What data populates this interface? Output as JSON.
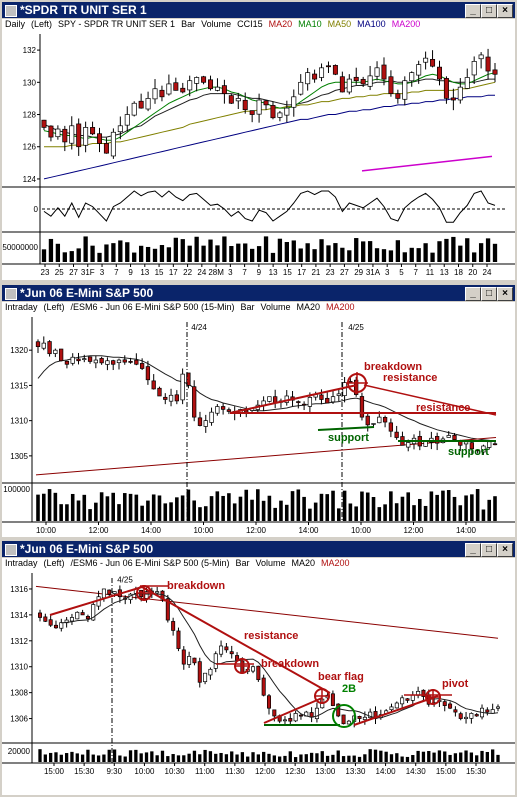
{
  "colors": {
    "title_bg": "#0a246a",
    "candle_up": "#ffffff",
    "candle_down": "#b01010",
    "annot": "#b01010",
    "support": "#006400",
    "ma20": "#202020",
    "ma10": "#008000",
    "ma50": "#808000",
    "ma100": "#000080",
    "ma200": "#8b0000",
    "ma200_alt": "#cc00cc"
  },
  "window_buttons": {
    "minimize": "_",
    "maximize": "□",
    "close": "×"
  },
  "panels": [
    {
      "title": "*SPDR TR UNIT SER 1",
      "header": {
        "period": "Daily",
        "axis": "(Left)",
        "symbol": "SPY - SPDR TR UNIT SER 1",
        "type": "Bar",
        "volume": "Volume",
        "ind": "CCI15",
        "ma1": "MA20",
        "ma2": "MA10",
        "ma3": "MA50",
        "ma4": "MA100",
        "ma5": "MA200"
      }
    },
    {
      "title": "*Jun 06  E-Mini S&P 500",
      "header": {
        "period": "Intraday",
        "axis": "(Left)",
        "symbol": "/ESM6 - Jun 06 E-Mini S&P 500 (15-Min)",
        "type": "Bar",
        "volume": "Volume",
        "ma1": "MA20",
        "ma2": "MA200"
      }
    },
    {
      "title": "*Jun 06  E-Mini S&P 500",
      "header": {
        "period": "Intraday",
        "axis": "(Left)",
        "symbol": "/ESM6 - Jun 06 E-Mini S&P 500 (5-Min)",
        "type": "Bar",
        "volume": "Volume",
        "ma1": "MA20",
        "ma2": "MA200"
      }
    }
  ],
  "chart_data": [
    {
      "type": "candlestick",
      "yticks": [
        124,
        126,
        128,
        130,
        132
      ],
      "ylim": [
        123.5,
        133
      ],
      "xticks": [
        "23",
        "25",
        "27",
        "31F",
        "3",
        "7",
        "9",
        "13",
        "15",
        "17",
        "22",
        "24",
        "28M",
        "3",
        "7",
        "9",
        "13",
        "15",
        "17",
        "21",
        "23",
        "27",
        "29",
        "31A",
        "3",
        "5",
        "7",
        "11",
        "13",
        "18",
        "20",
        "24"
      ],
      "close": [
        127.2,
        126.6,
        127.1,
        126.3,
        127.3,
        126.0,
        127.2,
        126.8,
        126.2,
        125.6,
        126.9,
        127.3,
        128.0,
        128.7,
        128.4,
        129.0,
        129.6,
        129.1,
        129.9,
        129.5,
        129.4,
        130.1,
        130.3,
        130.0,
        129.6,
        129.7,
        129.3,
        128.7,
        129.0,
        128.3,
        128.0,
        128.9,
        128.6,
        127.8,
        128.1,
        128.4,
        129.1,
        130.0,
        130.6,
        130.2,
        130.9,
        131.0,
        130.5,
        129.4,
        130.2,
        130.1,
        129.9,
        130.4,
        130.9,
        130.2,
        129.3,
        129.0,
        130.1,
        130.6,
        131.1,
        131.5,
        131.0,
        130.2,
        129.0,
        128.9,
        129.7,
        130.3,
        131.3,
        131.7,
        130.7,
        130.5
      ],
      "ma20": [
        127.4,
        127.2,
        127.0,
        126.9,
        126.8,
        126.7,
        126.7,
        126.6,
        126.6,
        126.6,
        126.7,
        126.8,
        127.0,
        127.2,
        127.3,
        127.6,
        127.9,
        128.1,
        128.3,
        128.5,
        128.7,
        128.9,
        129.0,
        129.2,
        129.3,
        129.3,
        129.3,
        129.3,
        129.2,
        129.1,
        129.0,
        129.0,
        128.9,
        128.8,
        128.7,
        128.6,
        128.6,
        128.7,
        128.8,
        129.0,
        129.2,
        129.3,
        129.5,
        129.6,
        129.7,
        129.8,
        129.8,
        129.9,
        130.0,
        130.0,
        130.1,
        130.0,
        130.0,
        130.0,
        130.1,
        130.2,
        130.2,
        130.1,
        130.1,
        130.0,
        130.0,
        130.0,
        130.0,
        130.1,
        130.2,
        130.2
      ],
      "ma10": [
        127.0,
        126.9,
        126.8,
        126.7,
        126.7,
        126.6,
        126.5,
        126.6,
        126.5,
        126.4,
        126.4,
        126.6,
        126.9,
        127.2,
        127.5,
        127.8,
        128.1,
        128.4,
        128.7,
        128.9,
        129.1,
        129.3,
        129.5,
        129.6,
        129.7,
        129.7,
        129.6,
        129.4,
        129.3,
        129.1,
        128.9,
        128.8,
        128.7,
        128.5,
        128.4,
        128.4,
        128.5,
        128.8,
        129.1,
        129.4,
        129.7,
        129.9,
        130.0,
        130.0,
        130.0,
        130.0,
        130.0,
        130.1,
        130.2,
        130.1,
        130.0,
        129.9,
        129.9,
        130.0,
        130.2,
        130.4,
        130.5,
        130.4,
        130.2,
        130.0,
        129.9,
        129.9,
        130.1,
        130.3,
        130.5,
        130.6
      ],
      "ma50": [
        126.0,
        126.0,
        126.0,
        126.0,
        126.1,
        126.1,
        126.1,
        126.2,
        126.2,
        126.2,
        126.3,
        126.3,
        126.4,
        126.5,
        126.6,
        126.7,
        126.8,
        126.9,
        127.0,
        127.1,
        127.2,
        127.4,
        127.5,
        127.6,
        127.7,
        127.8,
        127.9,
        128.0,
        128.1,
        128.2,
        128.2,
        128.3,
        128.3,
        128.4,
        128.4,
        128.5,
        128.5,
        128.6,
        128.6,
        128.7,
        128.8,
        128.8,
        128.9,
        129.0,
        129.0,
        129.1,
        129.1,
        129.2,
        129.2,
        129.3,
        129.3,
        129.3,
        129.3,
        129.4,
        129.4,
        129.5,
        129.5,
        129.5,
        129.5,
        129.5,
        129.6,
        129.6,
        129.7,
        129.8,
        129.9,
        130.0
      ],
      "ma100": [
        124.0,
        124.1,
        124.2,
        124.3,
        124.4,
        124.5,
        124.6,
        124.7,
        124.8,
        124.9,
        125.0,
        125.1,
        125.2,
        125.3,
        125.4,
        125.5,
        125.6,
        125.7,
        125.8,
        125.9,
        126.0,
        126.1,
        126.2,
        126.3,
        126.4,
        126.5,
        126.6,
        126.7,
        126.8,
        126.9,
        127.0,
        127.1,
        127.2,
        127.3,
        127.4,
        127.5,
        127.6,
        127.7,
        127.7,
        127.8,
        127.9,
        128.0,
        128.0,
        128.1,
        128.2,
        128.2,
        128.3,
        128.3,
        128.4,
        128.5,
        128.5,
        128.6,
        128.6,
        128.7,
        128.7,
        128.8,
        128.8,
        128.9,
        128.9,
        129.0,
        129.0,
        129.1,
        129.1,
        129.1,
        129.2,
        129.2
      ],
      "ma200_segment": {
        "from": 124.5,
        "to": 125.4
      },
      "cci_zero": 0,
      "volume_label": "50000000"
    },
    {
      "type": "candlestick",
      "yticks": [
        1305,
        1310,
        1315,
        1320
      ],
      "ylim": [
        1302,
        1324
      ],
      "xticks": [
        "10:00",
        "12:00",
        "14:00",
        "10:00",
        "12:00",
        "14:00",
        "10:00",
        "12:00",
        "14:00"
      ],
      "close": [
        1320.5,
        1321.0,
        1319.5,
        1320.0,
        1318.5,
        1318.0,
        1319.0,
        1318.5,
        1318.8,
        1318.4,
        1318.6,
        1318.2,
        1318.5,
        1318.0,
        1318.6,
        1318.3,
        1318.4,
        1318.0,
        1317.4,
        1315.8,
        1314.5,
        1313.5,
        1313.0,
        1313.6,
        1312.8,
        1316.6,
        1315.0,
        1310.5,
        1309.3,
        1310.0,
        1311.2,
        1312.0,
        1311.6,
        1311.3,
        1311.0,
        1311.6,
        1311.2,
        1311.8,
        1312.2,
        1312.8,
        1313.4,
        1312.5,
        1312.8,
        1313.5,
        1312.9,
        1312.6,
        1312.3,
        1313.3,
        1313.7,
        1313.0,
        1312.5,
        1313.4,
        1313.8,
        1315.4,
        1315.5,
        1313.7,
        1310.5,
        1309.4,
        1309.6,
        1310.5,
        1309.8,
        1308.5,
        1307.6,
        1306.5,
        1306.9,
        1307.5,
        1306.4,
        1307.1,
        1307.5,
        1306.8,
        1307.4,
        1307.9,
        1307.3,
        1306.5,
        1307.0,
        1306.0,
        1305.8,
        1306.4,
        1307.0,
        1306.6
      ],
      "ma20": [
        1316.0,
        1317.0,
        1317.8,
        1318.3,
        1318.5,
        1318.6,
        1318.8,
        1319.0,
        1319.1,
        1319.2,
        1319.2,
        1319.2,
        1319.1,
        1319.0,
        1319.0,
        1318.9,
        1318.8,
        1318.7,
        1318.5,
        1318.1,
        1317.6,
        1317.1,
        1316.6,
        1316.2,
        1315.7,
        1315.5,
        1315.2,
        1314.6,
        1313.9,
        1313.4,
        1313.0,
        1312.8,
        1312.5,
        1312.3,
        1312.1,
        1311.9,
        1311.7,
        1311.5,
        1311.4,
        1311.4,
        1311.5,
        1311.6,
        1311.7,
        1311.8,
        1312.0,
        1312.1,
        1312.2,
        1312.3,
        1312.4,
        1312.4,
        1312.5,
        1312.6,
        1312.7,
        1312.9,
        1313.1,
        1313.2,
        1313.0,
        1312.7,
        1312.4,
        1312.2,
        1311.9,
        1311.5,
        1311.1,
        1310.7,
        1310.3,
        1310.0,
        1309.6,
        1309.3,
        1309.0,
        1308.7,
        1308.5,
        1308.3,
        1308.1,
        1307.9,
        1307.7,
        1307.5,
        1307.4,
        1307.3,
        1307.2,
        1307.1
      ],
      "ma200": {
        "from": 1302.3,
        "to": 1307.6
      },
      "date_markers": [
        "4/24",
        "4/25"
      ],
      "annotations": [
        "breakdown",
        "resistance",
        "resistance",
        "support",
        "support"
      ],
      "volume_label": "100000"
    },
    {
      "type": "candlestick",
      "yticks": [
        1306,
        1308,
        1310,
        1312,
        1314,
        1316
      ],
      "ylim": [
        1304.5,
        1317
      ],
      "xticks": [
        "15:00",
        "15:30",
        "9:30",
        "10:00",
        "10:30",
        "11:00",
        "11:30",
        "12:00",
        "12:30",
        "13:00",
        "13:30",
        "14:00",
        "14:30",
        "15:00",
        "15:30"
      ],
      "close": [
        1313.8,
        1313.5,
        1313.2,
        1313.0,
        1313.4,
        1313.6,
        1313.8,
        1314.2,
        1314.0,
        1313.7,
        1314.8,
        1315.4,
        1316.0,
        1315.6,
        1315.8,
        1315.4,
        1315.2,
        1315.6,
        1316.0,
        1315.4,
        1315.8,
        1315.6,
        1315.8,
        1315.2,
        1313.6,
        1312.8,
        1311.4,
        1310.2,
        1310.8,
        1310.3,
        1308.8,
        1309.5,
        1309.8,
        1311.0,
        1311.6,
        1311.3,
        1311.0,
        1310.5,
        1309.5,
        1309.8,
        1310.0,
        1309.0,
        1307.8,
        1306.8,
        1306.2,
        1305.8,
        1305.9,
        1305.8,
        1306.4,
        1306.2,
        1306.5,
        1306.1,
        1306.8,
        1307.5,
        1307.8,
        1307.0,
        1306.2,
        1305.6,
        1305.8,
        1306.2,
        1306.0,
        1306.1,
        1306.5,
        1306.0,
        1306.3,
        1306.6,
        1306.9,
        1307.2,
        1307.6,
        1307.4,
        1307.8,
        1308.1,
        1307.7,
        1307.1,
        1307.2,
        1307.4,
        1307.0,
        1306.8,
        1306.5,
        1306.0,
        1306.1,
        1306.4,
        1306.2,
        1306.8,
        1306.5,
        1306.7,
        1306.9
      ],
      "ma200": {
        "from": 1316.2,
        "to": 1312.2
      },
      "date_marker": "4/25",
      "annotations": [
        "breakdown",
        "resistance",
        "breakdown",
        "bear flag",
        "2B",
        "pivot"
      ],
      "volume_label": "20000"
    }
  ]
}
